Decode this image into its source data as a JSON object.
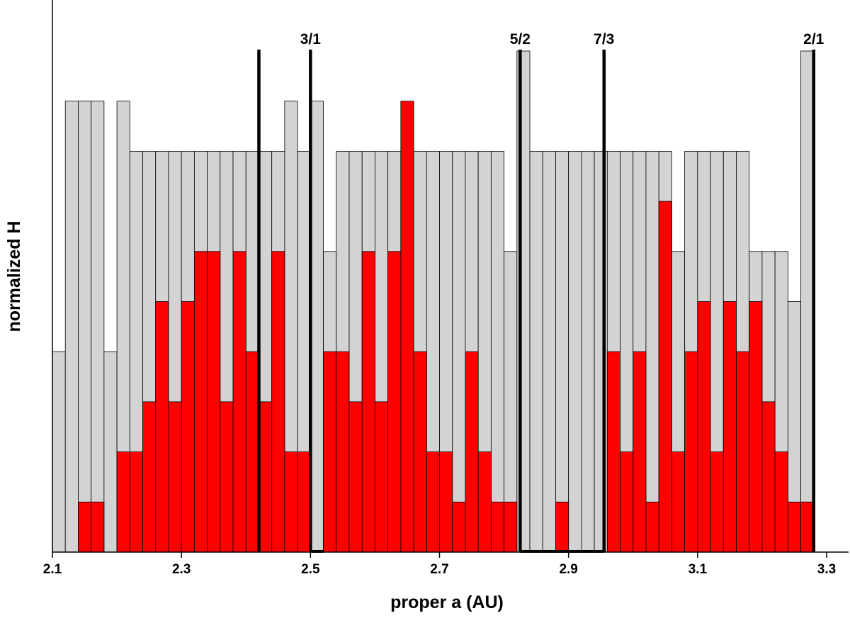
{
  "chart_data": {
    "type": "bar",
    "xlabel": "proper a (AU)",
    "ylabel": "normalized H",
    "xlim": [
      2.1,
      3.3
    ],
    "ylim": [
      0,
      10
    ],
    "x_ticks": [
      "2.1",
      "2.3",
      "2.5",
      "2.7",
      "2.9",
      "3.1",
      "3.3"
    ],
    "bin_width": 0.02,
    "bins_start": [
      2.1,
      2.12,
      2.14,
      2.16,
      2.18,
      2.2,
      2.22,
      2.24,
      2.26,
      2.28,
      2.3,
      2.32,
      2.34,
      2.36,
      2.38,
      2.4,
      2.42,
      2.44,
      2.46,
      2.48,
      2.5,
      2.52,
      2.54,
      2.56,
      2.58,
      2.6,
      2.62,
      2.64,
      2.66,
      2.68,
      2.7,
      2.72,
      2.74,
      2.76,
      2.78,
      2.8,
      2.82,
      2.84,
      2.86,
      2.88,
      2.9,
      2.92,
      2.94,
      2.96,
      2.98,
      3.0,
      3.02,
      3.04,
      3.06,
      3.08,
      3.1,
      3.12,
      3.14,
      3.16,
      3.18,
      3.2,
      3.22,
      3.24,
      3.26
    ],
    "series": [
      {
        "color": "#d3d3d3",
        "values": [
          4,
          9,
          9,
          9,
          4,
          9,
          8,
          8,
          8,
          8,
          8,
          8,
          8,
          8,
          8,
          8,
          8,
          8,
          9,
          8,
          9,
          6,
          8,
          8,
          8,
          8,
          8,
          8,
          8,
          8,
          8,
          8,
          8,
          8,
          8,
          6,
          10,
          8,
          8,
          8,
          8,
          8,
          8,
          8,
          8,
          8,
          8,
          8,
          6,
          8,
          8,
          8,
          8,
          8,
          6,
          6,
          6,
          5,
          10
        ]
      },
      {
        "color": "#ff0000",
        "values": [
          0,
          0,
          1,
          1,
          0,
          2,
          2,
          3,
          5,
          3,
          5,
          6,
          6,
          3,
          6,
          4,
          3,
          6,
          2,
          2,
          0,
          4,
          4,
          3,
          6,
          3,
          6,
          9,
          4,
          2,
          2,
          1,
          4,
          2,
          1,
          1,
          0,
          0,
          0,
          1,
          0,
          0,
          0,
          4,
          2,
          4,
          1,
          7,
          2,
          4,
          5,
          2,
          5,
          4,
          5,
          3,
          2,
          1,
          1
        ]
      }
    ],
    "resonances": [
      {
        "label": "",
        "a": 2.42,
        "height": 10.0
      },
      {
        "label": "3/1",
        "a": 2.5,
        "height": 10.0
      },
      {
        "label": "5/2",
        "a": 2.825,
        "height": 10.0
      },
      {
        "label": "7/3",
        "a": 2.955,
        "height": 10.0
      },
      {
        "label": "2/1",
        "a": 3.28,
        "height": 10.0
      }
    ],
    "gap_bars": [
      {
        "from": 2.5,
        "to": 2.52
      },
      {
        "from": 2.825,
        "to": 2.955
      }
    ]
  }
}
